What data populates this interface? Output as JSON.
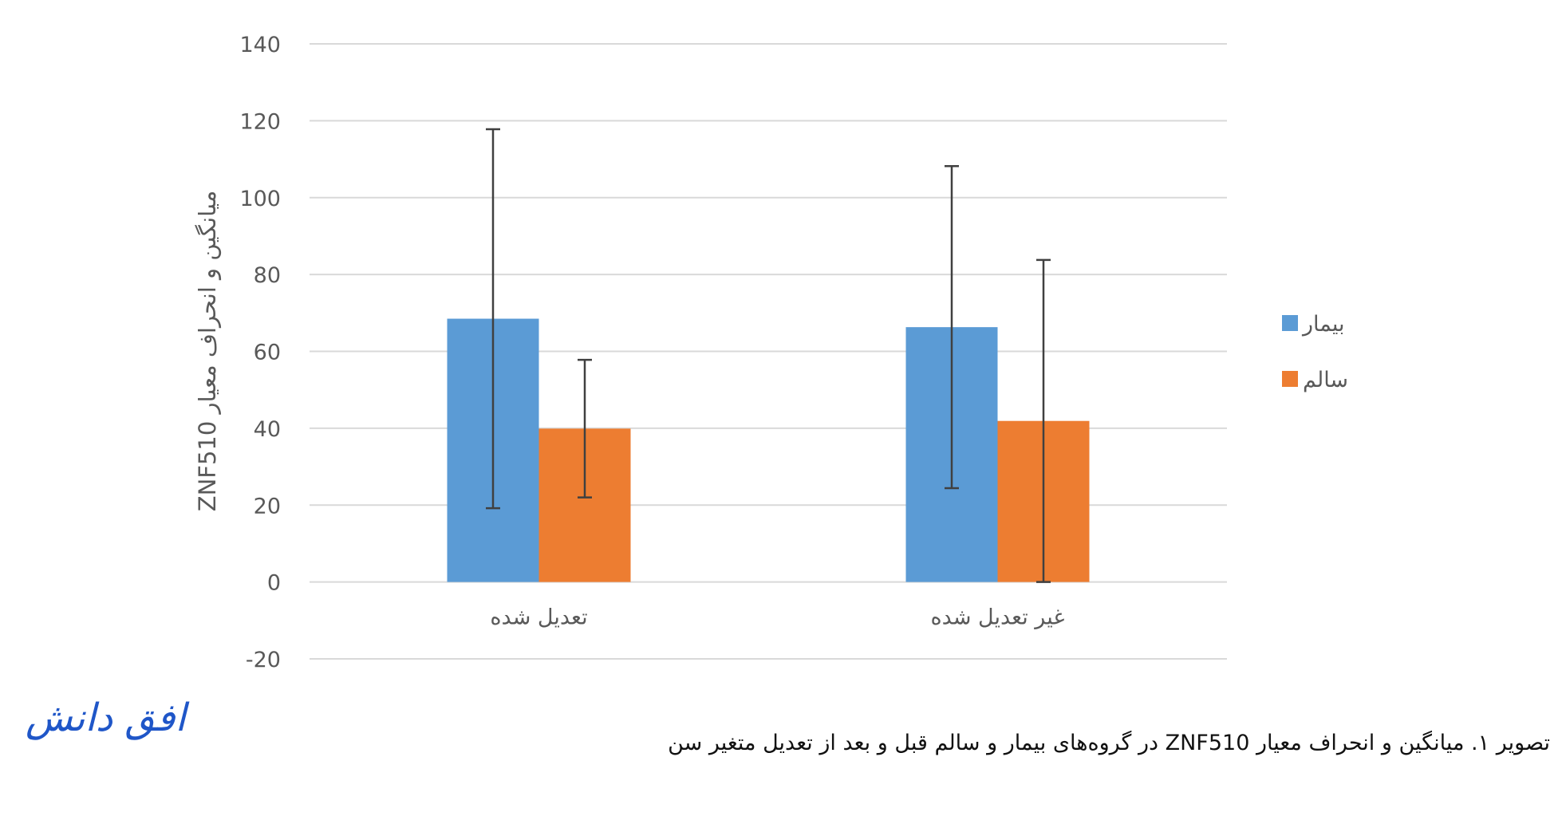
{
  "chart_data": {
    "type": "bar",
    "categories": [
      "تعدیل شده",
      "غیر تعدیل شده"
    ],
    "series": [
      {
        "name": "بیمار",
        "color": "#5b9bd5",
        "values": [
          68.5,
          66.3
        ],
        "error": [
          49.3,
          41.9
        ]
      },
      {
        "name": "سالم",
        "color": "#ed7d31",
        "values": [
          39.9,
          41.9
        ],
        "error": [
          17.9,
          41.9
        ]
      }
    ],
    "ylim": [
      -20,
      140
    ],
    "yticks": [
      140,
      120,
      100,
      80,
      60,
      40,
      20,
      0,
      -20
    ],
    "ylabel": "ZNF510 میانگین و انحراف معیار",
    "xlabel": "",
    "grid": true,
    "legend_position": "right"
  },
  "logo_text": "افق دانش",
  "caption": "تصویر ۱. میانگین و انحراف معیار ZNF510 در گروه‌های بیمار و سالم قبل و بعد از تعدیل متغیر سن"
}
